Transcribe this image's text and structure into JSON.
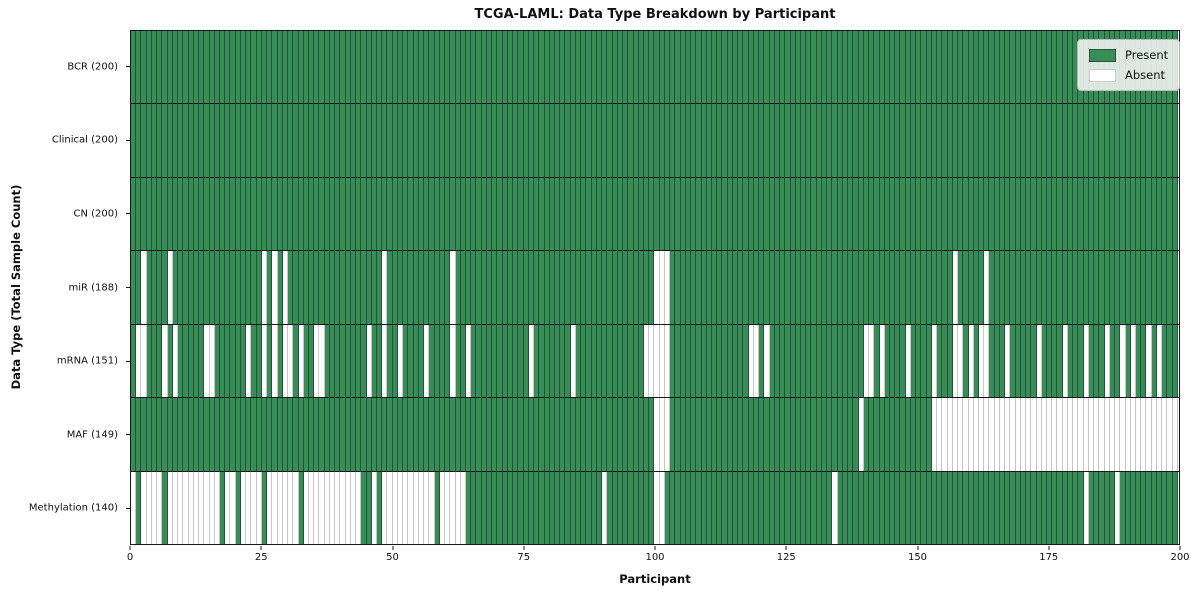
{
  "title": "TCGA-LAML: Data Type Breakdown by Participant",
  "x_axis_label": "Participant",
  "y_axis_label": "Data Type (Total Sample Count)",
  "legend": {
    "present_label": "Present",
    "absent_label": "Absent"
  },
  "colors": {
    "present": "#388c58",
    "absent": "#ffffff",
    "axis": "#161616"
  },
  "chart_data": {
    "type": "heatmap",
    "title": "TCGA-LAML: Data Type Breakdown by Participant",
    "xlabel": "Participant",
    "ylabel": "Data Type (Total Sample Count)",
    "x_range": [
      0,
      200
    ],
    "x_ticks": [
      0,
      25,
      50,
      75,
      100,
      125,
      150,
      175,
      200
    ],
    "n_participants": 200,
    "legend_entries": [
      "Present",
      "Absent"
    ],
    "legend_position": "upper right",
    "rows": [
      {
        "label": "BCR (200)",
        "present_count": 200,
        "absent_participants": []
      },
      {
        "label": "Clinical (200)",
        "present_count": 200,
        "absent_participants": []
      },
      {
        "label": "CN (200)",
        "present_count": 200,
        "absent_participants": []
      },
      {
        "label": "miR (188)",
        "present_count": 188,
        "absent_participants": [
          2,
          7,
          25,
          27,
          29,
          48,
          61,
          100,
          101,
          102,
          157,
          163
        ]
      },
      {
        "label": "mRNA (151)",
        "present_count": 151,
        "absent_participants": [
          1,
          2,
          6,
          8,
          14,
          15,
          22,
          25,
          27,
          29,
          30,
          32,
          35,
          36,
          45,
          48,
          51,
          56,
          61,
          64,
          76,
          84,
          98,
          99,
          100,
          101,
          102,
          118,
          119,
          121,
          140,
          141,
          143,
          148,
          153,
          157,
          158,
          160,
          162,
          163,
          167,
          173,
          178,
          182,
          186,
          189,
          191,
          194,
          196
        ]
      },
      {
        "label": "MAF (149)",
        "present_count": 149,
        "absent_participants": [
          100,
          101,
          102,
          139,
          153,
          154,
          155,
          156,
          157,
          158,
          159,
          160,
          161,
          162,
          163,
          164,
          165,
          166,
          167,
          168,
          169,
          170,
          171,
          172,
          173,
          174,
          175,
          176,
          177,
          178,
          179,
          180,
          181,
          182,
          183,
          184,
          185,
          186,
          187,
          188,
          189,
          190,
          191,
          192,
          193,
          194,
          195,
          196,
          197,
          198,
          199
        ]
      },
      {
        "label": "Methylation (140)",
        "present_count": 140,
        "absent_participants": [
          0,
          2,
          3,
          4,
          5,
          7,
          8,
          9,
          10,
          11,
          12,
          13,
          14,
          15,
          16,
          18,
          19,
          21,
          22,
          23,
          24,
          26,
          27,
          28,
          29,
          30,
          31,
          33,
          34,
          35,
          36,
          37,
          38,
          39,
          40,
          41,
          42,
          43,
          46,
          48,
          49,
          50,
          51,
          52,
          53,
          54,
          55,
          56,
          57,
          59,
          60,
          61,
          62,
          63,
          90,
          100,
          101,
          134,
          182,
          188
        ]
      }
    ]
  }
}
